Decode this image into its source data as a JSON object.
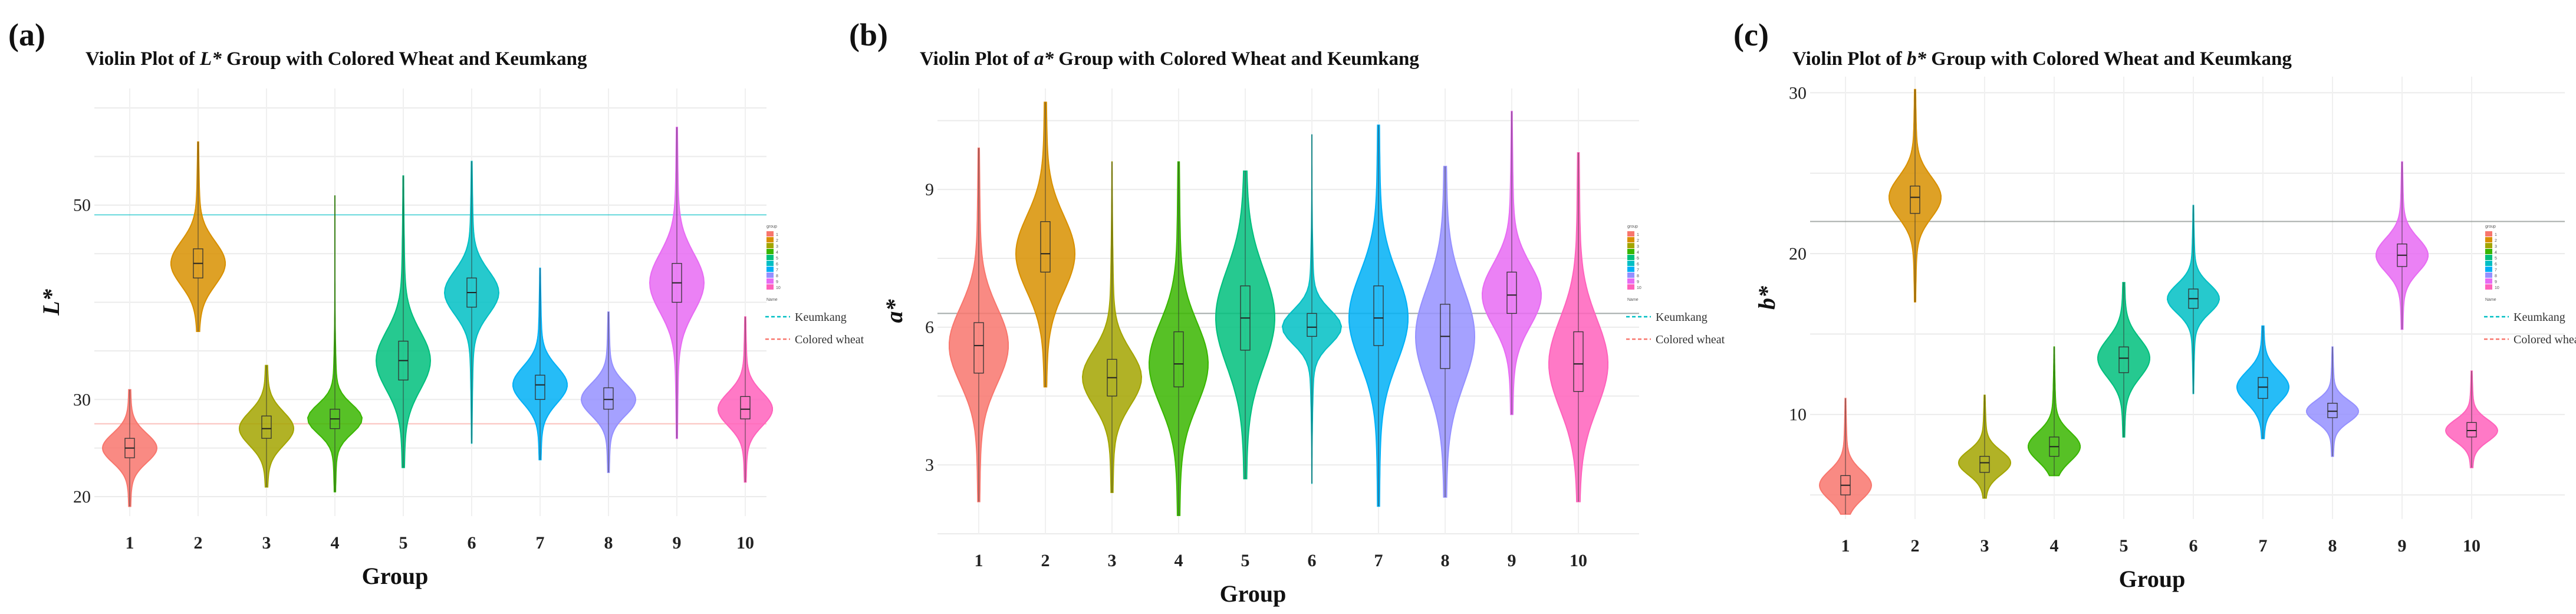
{
  "chart_data": [
    {
      "type": "violin",
      "panel_label": "(a)",
      "title_prefix": "Violin Plot of ",
      "title_var": "L*",
      "title_suffix": " Group with Colored Wheat and Keumkang",
      "xlabel": "Group",
      "ylabel": "L*",
      "categories": [
        "1",
        "2",
        "3",
        "4",
        "5",
        "6",
        "7",
        "8",
        "9",
        "10"
      ],
      "yticks": [
        20,
        30,
        50
      ],
      "ylim": [
        18,
        62
      ],
      "reference_lines": {
        "Keumkang": 49,
        "Colored wheat": 27.5
      },
      "groups": [
        {
          "group": "1",
          "min": 19,
          "q1": 24,
          "median": 25,
          "q3": 26,
          "max": 31,
          "color": "#F8766D"
        },
        {
          "group": "2",
          "min": 37,
          "q1": 42.5,
          "median": 44,
          "q3": 45.5,
          "max": 56.5,
          "color": "#D89000"
        },
        {
          "group": "3",
          "min": 21,
          "q1": 26,
          "median": 27,
          "q3": 28.3,
          "max": 33.5,
          "color": "#A3A500"
        },
        {
          "group": "4",
          "min": 20.5,
          "q1": 27,
          "median": 28,
          "q3": 29,
          "max": 51,
          "color": "#39B600"
        },
        {
          "group": "5",
          "min": 23,
          "q1": 32,
          "median": 34,
          "q3": 36,
          "max": 53,
          "color": "#00BF7D"
        },
        {
          "group": "6",
          "min": 25.5,
          "q1": 39.5,
          "median": 41,
          "q3": 42.5,
          "max": 54.5,
          "color": "#00BFC4"
        },
        {
          "group": "7",
          "min": 23.8,
          "q1": 30,
          "median": 31.5,
          "q3": 32.5,
          "max": 43.5,
          "color": "#00B0F6"
        },
        {
          "group": "8",
          "min": 22.5,
          "q1": 29,
          "median": 30,
          "q3": 31.2,
          "max": 39,
          "color": "#9590FF"
        },
        {
          "group": "9",
          "min": 26,
          "q1": 40,
          "median": 42,
          "q3": 44,
          "max": 58,
          "color": "#E76BF3"
        },
        {
          "group": "10",
          "min": 21.5,
          "q1": 28,
          "median": 29,
          "q3": 30.3,
          "max": 38.5,
          "color": "#FF62BC"
        }
      ],
      "legend": {
        "title": "group",
        "entries": [
          "1",
          "2",
          "3",
          "4",
          "5",
          "6",
          "7",
          "8",
          "9",
          "10"
        ],
        "line_title": "Name",
        "lines": [
          "Keumkang",
          "Colored wheat"
        ]
      }
    },
    {
      "type": "violin",
      "panel_label": "(b)",
      "title_prefix": "Violin Plot of ",
      "title_var": "a*",
      "title_suffix": " Group with Colored Wheat and Keumkang",
      "xlabel": "Group",
      "ylabel": "a*",
      "categories": [
        "1",
        "2",
        "3",
        "4",
        "5",
        "6",
        "7",
        "8",
        "9",
        "10"
      ],
      "yticks": [
        3,
        6,
        9
      ],
      "ylim": [
        1.5,
        11.2
      ],
      "reference_lines": {
        "Keumkang": 6.3,
        "Colored wheat": 6.3
      },
      "groups": [
        {
          "group": "1",
          "min": 2.2,
          "q1": 5,
          "median": 5.6,
          "q3": 6.1,
          "max": 9.9,
          "color": "#F8766D"
        },
        {
          "group": "2",
          "min": 4.7,
          "q1": 7.2,
          "median": 7.6,
          "q3": 8.3,
          "max": 10.9,
          "color": "#D89000"
        },
        {
          "group": "3",
          "min": 2.4,
          "q1": 4.5,
          "median": 4.9,
          "q3": 5.3,
          "max": 9.6,
          "color": "#A3A500"
        },
        {
          "group": "4",
          "min": 1.9,
          "q1": 4.7,
          "median": 5.2,
          "q3": 5.9,
          "max": 9.6,
          "color": "#39B600"
        },
        {
          "group": "5",
          "min": 2.7,
          "q1": 5.5,
          "median": 6.2,
          "q3": 6.9,
          "max": 9.4,
          "color": "#00BF7D"
        },
        {
          "group": "6",
          "min": 2.6,
          "q1": 5.8,
          "median": 6,
          "q3": 6.3,
          "max": 10.2,
          "color": "#00BFC4"
        },
        {
          "group": "7",
          "min": 2.1,
          "q1": 5.6,
          "median": 6.2,
          "q3": 6.9,
          "max": 10.4,
          "color": "#00B0F6"
        },
        {
          "group": "8",
          "min": 2.3,
          "q1": 5.1,
          "median": 5.8,
          "q3": 6.5,
          "max": 9.5,
          "color": "#9590FF"
        },
        {
          "group": "9",
          "min": 4.1,
          "q1": 6.3,
          "median": 6.7,
          "q3": 7.2,
          "max": 10.7,
          "color": "#E76BF3"
        },
        {
          "group": "10",
          "min": 2.2,
          "q1": 4.6,
          "median": 5.2,
          "q3": 5.9,
          "max": 9.8,
          "color": "#FF62BC"
        }
      ],
      "legend": {
        "title": "group",
        "entries": [
          "1",
          "2",
          "3",
          "4",
          "5",
          "6",
          "7",
          "8",
          "9",
          "10"
        ],
        "line_title": "Name",
        "lines": [
          "Keumkang",
          "Colored wheat"
        ]
      }
    },
    {
      "type": "violin",
      "panel_label": "(c)",
      "title_prefix": "Violin Plot of ",
      "title_var": "b*",
      "title_suffix": " Group with Colored Wheat and Keumkang",
      "xlabel": "Group",
      "ylabel": "b*",
      "categories": [
        "1",
        "2",
        "3",
        "4",
        "5",
        "6",
        "7",
        "8",
        "9",
        "10"
      ],
      "yticks": [
        10,
        20,
        30
      ],
      "ylim": [
        3.5,
        31
      ],
      "reference_lines": {
        "Keumkang": 22,
        "Colored wheat": 22
      },
      "groups": [
        {
          "group": "1",
          "min": 3.8,
          "q1": 5,
          "median": 5.6,
          "q3": 6.2,
          "max": 11,
          "color": "#F8766D"
        },
        {
          "group": "2",
          "min": 17,
          "q1": 22.5,
          "median": 23.5,
          "q3": 24.2,
          "max": 30.2,
          "color": "#D89000"
        },
        {
          "group": "3",
          "min": 4.8,
          "q1": 6.4,
          "median": 7,
          "q3": 7.4,
          "max": 11.2,
          "color": "#A3A500"
        },
        {
          "group": "4",
          "min": 6.2,
          "q1": 7.4,
          "median": 8,
          "q3": 8.6,
          "max": 14.2,
          "color": "#39B600"
        },
        {
          "group": "5",
          "min": 8.6,
          "q1": 12.6,
          "median": 13.5,
          "q3": 14.2,
          "max": 18.2,
          "color": "#00BF7D"
        },
        {
          "group": "6",
          "min": 11.3,
          "q1": 16.6,
          "median": 17.2,
          "q3": 17.8,
          "max": 23,
          "color": "#00BFC4"
        },
        {
          "group": "7",
          "min": 8.5,
          "q1": 11,
          "median": 11.7,
          "q3": 12.3,
          "max": 15.5,
          "color": "#00B0F6"
        },
        {
          "group": "8",
          "min": 7.4,
          "q1": 9.8,
          "median": 10.2,
          "q3": 10.7,
          "max": 14.2,
          "color": "#9590FF"
        },
        {
          "group": "9",
          "min": 15.3,
          "q1": 19.2,
          "median": 19.9,
          "q3": 20.6,
          "max": 25.7,
          "color": "#E76BF3"
        },
        {
          "group": "10",
          "min": 6.7,
          "q1": 8.6,
          "median": 9,
          "q3": 9.5,
          "max": 12.7,
          "color": "#FF62BC"
        }
      ],
      "legend": {
        "title": "group",
        "entries": [
          "1",
          "2",
          "3",
          "4",
          "5",
          "6",
          "7",
          "8",
          "9",
          "10"
        ],
        "line_title": "Name",
        "lines": [
          "Keumkang",
          "Colored wheat"
        ]
      }
    }
  ],
  "colors": {
    "keumkang_line": "#00BFC4",
    "colored_wheat_line": "#F8766D"
  }
}
